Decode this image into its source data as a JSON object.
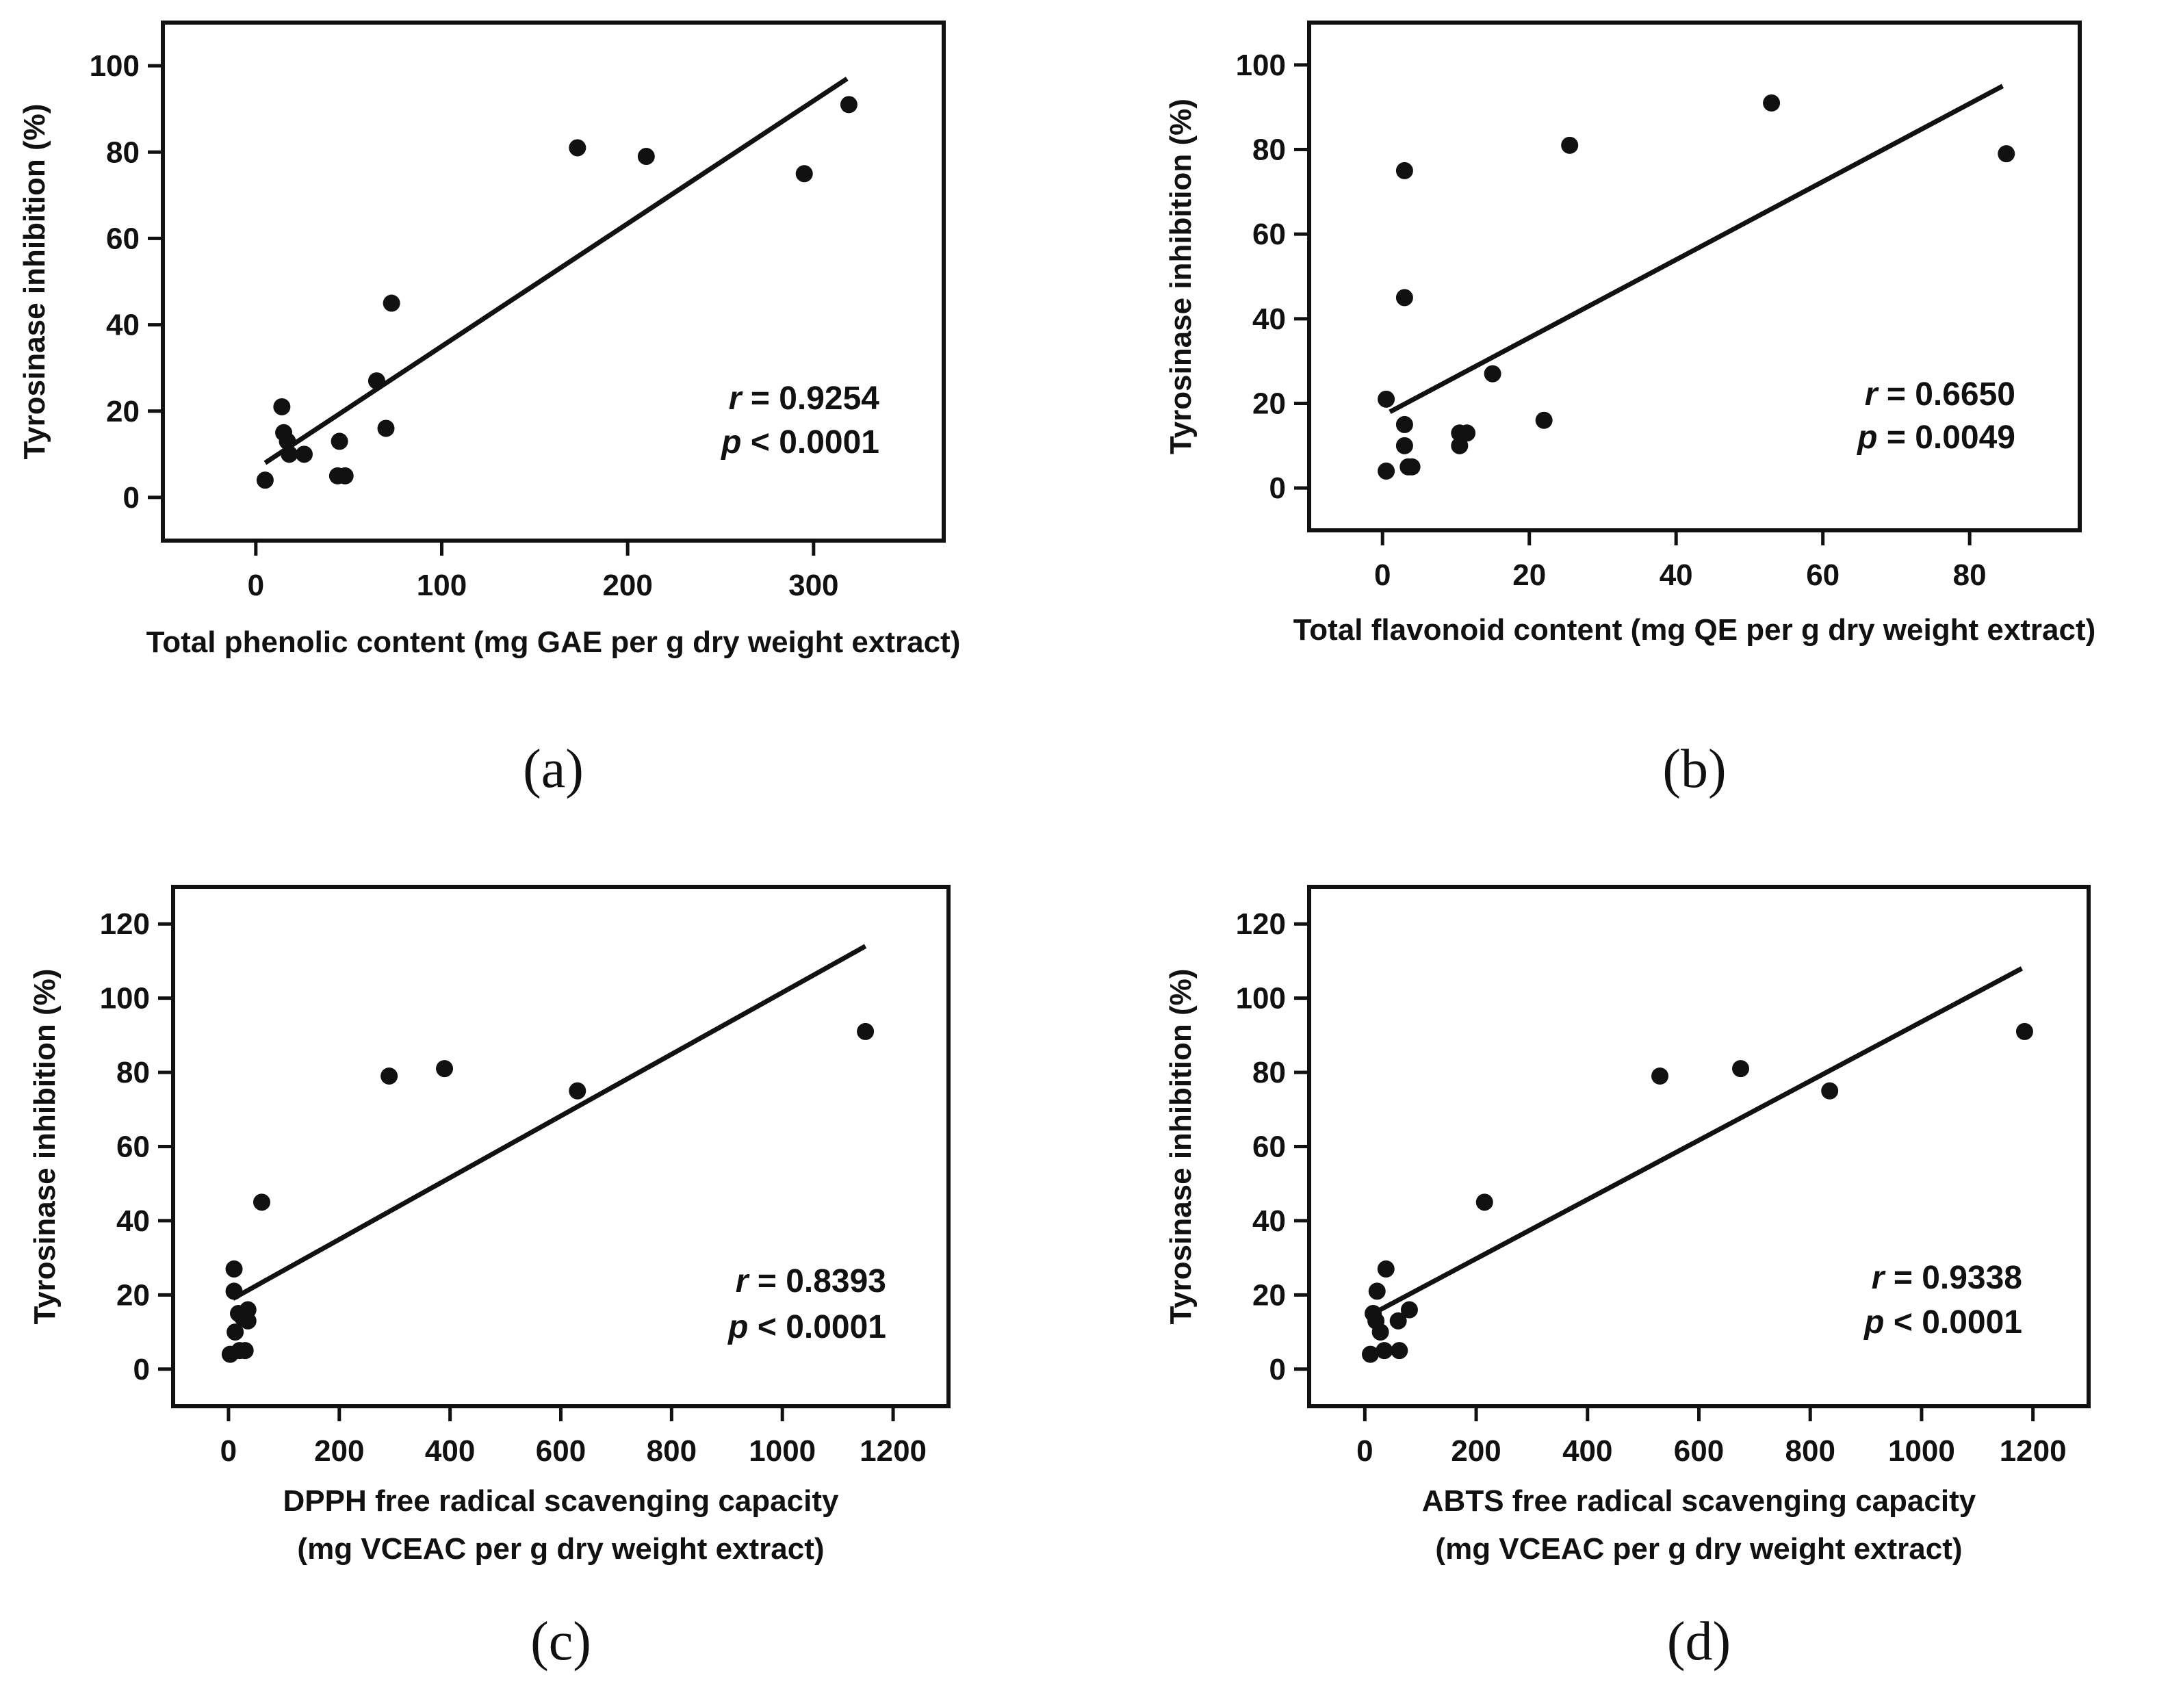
{
  "chart_data": [
    {
      "id": "a",
      "type": "scatter",
      "panel_label": "(a)",
      "xlabel": [
        "Total phenolic content (mg GAE per g dry weight extract)"
      ],
      "ylabel": "Tyrosinase inhibition (%)",
      "xlim": [
        -50,
        370
      ],
      "ylim": [
        -10,
        110
      ],
      "xticks": [
        0,
        100,
        200,
        300
      ],
      "yticks": [
        0,
        20,
        40,
        60,
        80,
        100
      ],
      "points": [
        [
          5,
          4
        ],
        [
          14,
          21
        ],
        [
          15,
          15
        ],
        [
          17,
          13
        ],
        [
          18,
          10
        ],
        [
          26,
          10
        ],
        [
          44,
          5
        ],
        [
          45,
          13
        ],
        [
          48,
          5
        ],
        [
          70,
          16
        ],
        [
          73,
          45
        ],
        [
          65,
          27
        ],
        [
          173,
          81
        ],
        [
          210,
          79
        ],
        [
          295,
          75
        ],
        [
          319,
          91
        ]
      ],
      "fit": {
        "x": [
          5,
          318
        ],
        "y": [
          8,
          97
        ]
      },
      "stats": {
        "r_symbol": "r",
        "r_text": " = 0.9254",
        "p_symbol": "p",
        "p_text": " < 0.0001"
      }
    },
    {
      "id": "b",
      "type": "scatter",
      "panel_label": "(b)",
      "xlabel": [
        "Total flavonoid content (mg QE per g dry weight extract)"
      ],
      "ylabel": "Tyrosinase inhibition (%)",
      "xlim": [
        -10,
        95
      ],
      "ylim": [
        -10,
        110
      ],
      "xticks": [
        0,
        20,
        40,
        60,
        80
      ],
      "yticks": [
        0,
        20,
        40,
        60,
        80,
        100
      ],
      "points": [
        [
          0.5,
          21
        ],
        [
          0.5,
          4
        ],
        [
          3,
          75
        ],
        [
          3,
          45
        ],
        [
          3,
          15
        ],
        [
          3,
          10
        ],
        [
          3.5,
          5
        ],
        [
          4,
          5
        ],
        [
          10.5,
          13
        ],
        [
          10.5,
          10
        ],
        [
          11.5,
          13
        ],
        [
          15,
          27
        ],
        [
          22,
          16
        ],
        [
          25.5,
          81
        ],
        [
          53,
          91
        ],
        [
          85,
          79
        ]
      ],
      "fit": {
        "x": [
          1,
          84.5
        ],
        "y": [
          18,
          95
        ]
      },
      "stats": {
        "r_symbol": "r",
        "r_text": " = 0.6650",
        "p_symbol": "p",
        "p_text": " = 0.0049"
      }
    },
    {
      "id": "c",
      "type": "scatter",
      "panel_label": "(c)",
      "xlabel": [
        "DPPH  free radical scavenging capacity",
        "(mg VCEAC per g dry weight extract)"
      ],
      "ylabel": "Tyrosinase inhibition (%)",
      "xlim": [
        -100,
        1300
      ],
      "ylim": [
        -10,
        130
      ],
      "xticks": [
        0,
        200,
        400,
        600,
        800,
        1000,
        1200
      ],
      "yticks": [
        0,
        20,
        40,
        60,
        80,
        100,
        120
      ],
      "points": [
        [
          3,
          4
        ],
        [
          10,
          27
        ],
        [
          10,
          21
        ],
        [
          12,
          10
        ],
        [
          18,
          15
        ],
        [
          20,
          5
        ],
        [
          25,
          14
        ],
        [
          35,
          16
        ],
        [
          35,
          13
        ],
        [
          30,
          5
        ],
        [
          60,
          45
        ],
        [
          290,
          79
        ],
        [
          390,
          81
        ],
        [
          630,
          75
        ],
        [
          1150,
          91
        ]
      ],
      "fit": {
        "x": [
          8,
          1150
        ],
        "y": [
          19,
          114
        ]
      },
      "stats": {
        "r_symbol": "r",
        "r_text": " = 0.8393",
        "p_symbol": "p",
        "p_text": " < 0.0001"
      }
    },
    {
      "id": "d",
      "type": "scatter",
      "panel_label": "(d)",
      "xlabel": [
        "ABTS  free radical scavenging capacity",
        "(mg VCEAC per g dry weight extract)"
      ],
      "ylabel": "Tyrosinase inhibition (%)",
      "xlim": [
        -100,
        1300
      ],
      "ylim": [
        -10,
        130
      ],
      "xticks": [
        0,
        200,
        400,
        600,
        800,
        1000,
        1200
      ],
      "yticks": [
        0,
        20,
        40,
        60,
        80,
        100,
        120
      ],
      "points": [
        [
          10,
          4
        ],
        [
          15,
          15
        ],
        [
          20,
          13
        ],
        [
          22,
          21
        ],
        [
          28,
          10
        ],
        [
          35,
          5
        ],
        [
          38,
          27
        ],
        [
          60,
          13
        ],
        [
          62,
          5
        ],
        [
          80,
          16
        ],
        [
          215,
          45
        ],
        [
          530,
          79
        ],
        [
          675,
          81
        ],
        [
          835,
          75
        ],
        [
          1185,
          91
        ]
      ],
      "fit": {
        "x": [
          15,
          1180
        ],
        "y": [
          15,
          108
        ]
      },
      "stats": {
        "r_symbol": "r",
        "r_text": " = 0.9338",
        "p_symbol": "p",
        "p_text": " < 0.0001"
      }
    }
  ]
}
